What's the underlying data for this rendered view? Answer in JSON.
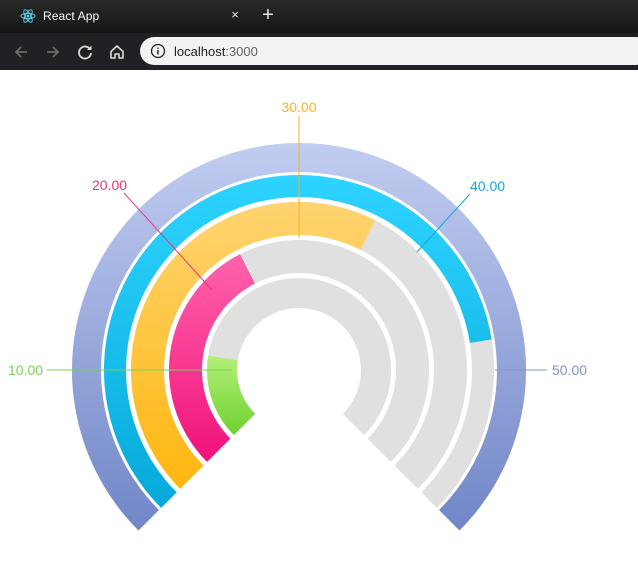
{
  "browser": {
    "tab_title": "React App",
    "tab_close": "×",
    "new_tab": "+",
    "url_host": "localhost",
    "url_port": ":3000"
  },
  "chart_data": {
    "type": "radial-bar",
    "max": 50,
    "tick_labels": [
      "10.00",
      "20.00",
      "30.00",
      "40.00",
      "50.00"
    ],
    "tick_colors": [
      "#7ccf57",
      "#e8337c",
      "#f5b229",
      "#1ba7d6",
      "#8393c9"
    ],
    "values": [
      10,
      20,
      30,
      40,
      50
    ],
    "colors": {
      "track": "#e0e0e0",
      "bar_1": [
        "#b4f07a",
        "#6fd12f"
      ],
      "bar_2": [
        "#ff63ac",
        "#f0127a"
      ],
      "bar_3": [
        "#ffd470",
        "#ffb60f"
      ],
      "bar_4": [
        "#2ed4ff",
        "#06a9d9"
      ],
      "bar_5": [
        "#c1cdf0",
        "#7186c8"
      ]
    }
  }
}
